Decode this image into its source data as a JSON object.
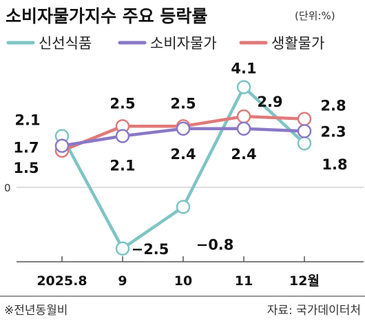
{
  "chart_data": {
    "type": "line",
    "title": "소비자물가지수 주요 등락률",
    "unit_note": "(단위:%)",
    "x": [
      "2025.8",
      "9",
      "10",
      "11",
      "12월"
    ],
    "zero_label": "0",
    "ylim": [
      -2.8,
      4.6
    ],
    "grid": false,
    "legend_position": "top",
    "series": [
      {
        "name": "신선식품",
        "color": "#7fc4c4",
        "values": [
          2.1,
          -2.5,
          -0.8,
          4.1,
          1.8
        ],
        "labels": [
          "2.1",
          "−2.5",
          "−0.8",
          "4.1",
          "1.8"
        ]
      },
      {
        "name": "소비자물가",
        "color": "#8a78c6",
        "values": [
          1.7,
          2.1,
          2.4,
          2.4,
          2.3
        ],
        "labels": [
          "1.7",
          "2.1",
          "2.4",
          "2.4",
          "2.3"
        ]
      },
      {
        "name": "생활물가",
        "color": "#e07a7a",
        "values": [
          1.5,
          2.5,
          2.5,
          2.9,
          2.8
        ],
        "labels": [
          "1.5",
          "2.5",
          "2.5",
          "2.9",
          "2.8"
        ]
      }
    ],
    "footnote": "※전년동월비",
    "source": "자료: 국가데이터처"
  }
}
